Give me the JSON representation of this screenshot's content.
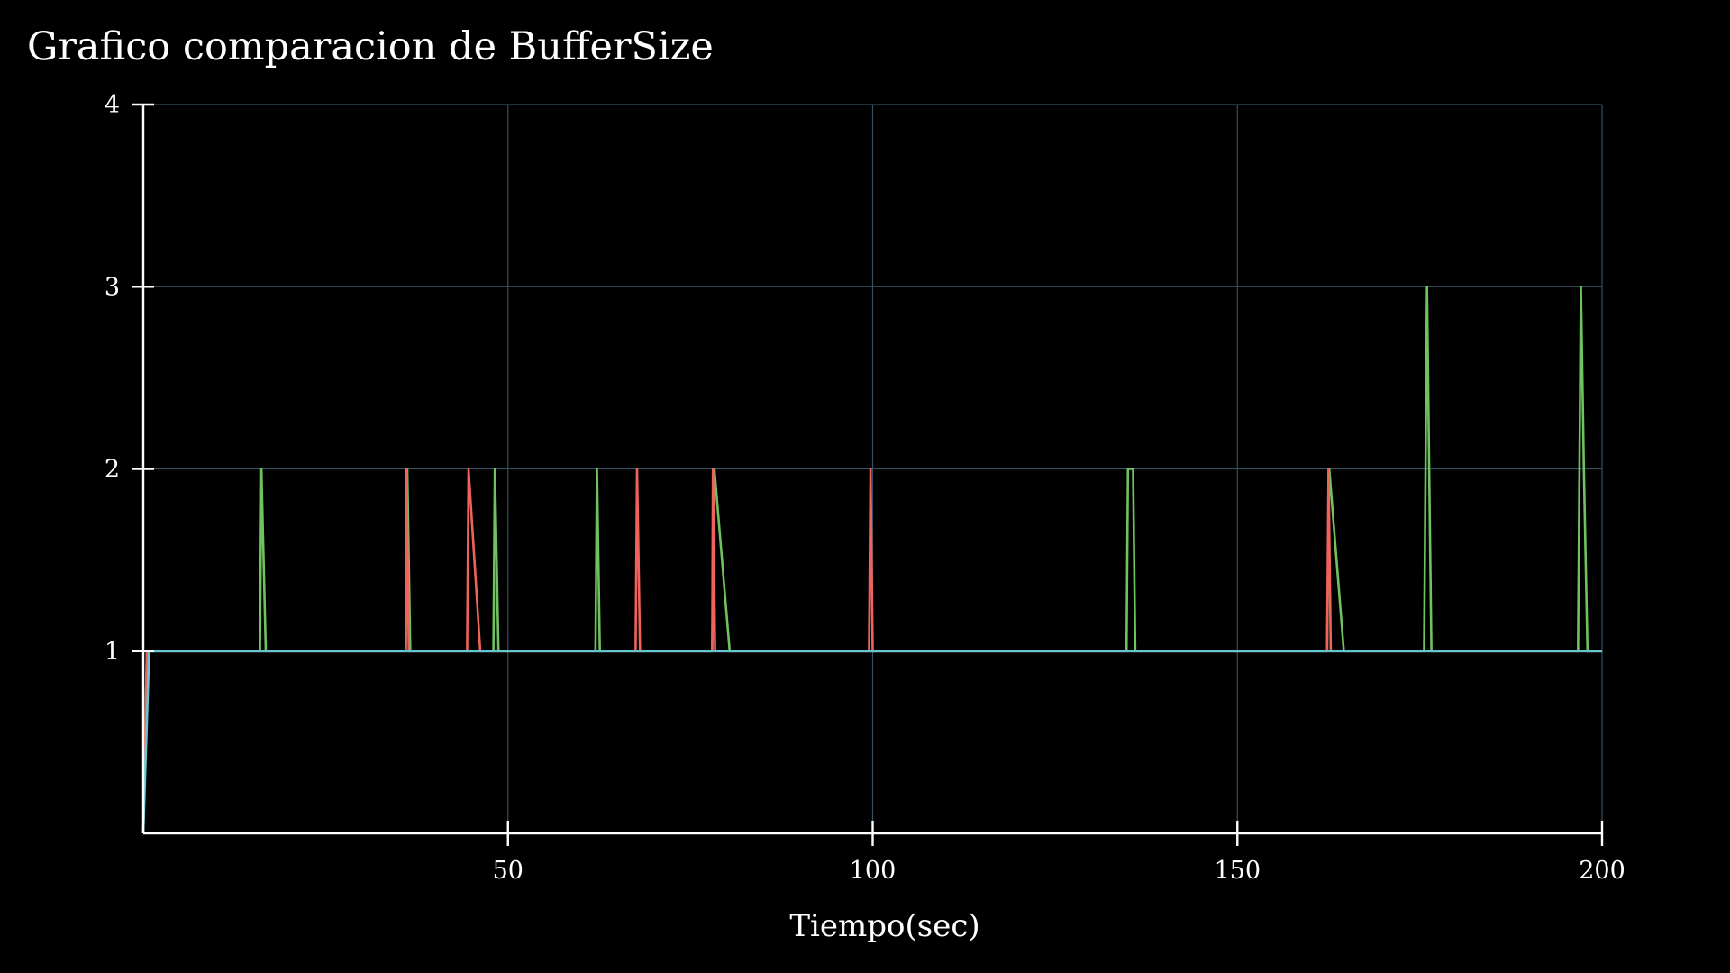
{
  "chart_data": {
    "type": "line",
    "title": "Grafico comparacion de BufferSize",
    "xlabel": "Tiempo(sec)",
    "ylabel": "",
    "xlim": [
      0,
      200
    ],
    "ylim": [
      0,
      4
    ],
    "x_ticks": [
      50,
      100,
      150,
      200
    ],
    "y_ticks": [
      1,
      2,
      3,
      4
    ],
    "grid": true,
    "colors": {
      "background": "#000000",
      "axis": "#ffffff",
      "grid": "#35505e"
    },
    "series": [
      {
        "color": "#6fc35f",
        "points": [
          [
            0,
            0
          ],
          [
            0.5,
            1
          ],
          [
            16,
            1
          ],
          [
            16.2,
            2
          ],
          [
            16.8,
            1
          ],
          [
            36,
            1
          ],
          [
            36.2,
            2
          ],
          [
            36.6,
            1
          ],
          [
            48,
            1
          ],
          [
            48.2,
            2
          ],
          [
            48.7,
            1
          ],
          [
            62,
            1
          ],
          [
            62.2,
            2
          ],
          [
            62.6,
            1
          ],
          [
            78,
            1
          ],
          [
            78.3,
            2
          ],
          [
            80.4,
            1
          ],
          [
            134.8,
            1
          ],
          [
            135,
            2
          ],
          [
            135.7,
            2
          ],
          [
            136,
            1
          ],
          [
            162.3,
            1
          ],
          [
            162.6,
            2
          ],
          [
            164.6,
            1
          ],
          [
            175.6,
            1
          ],
          [
            175.8,
            2
          ],
          [
            176,
            3
          ],
          [
            176.3,
            2
          ],
          [
            176.6,
            1
          ],
          [
            196.7,
            1
          ],
          [
            196.9,
            2
          ],
          [
            197.1,
            3
          ],
          [
            197.5,
            2
          ],
          [
            198,
            1
          ],
          [
            200,
            1
          ]
        ]
      },
      {
        "color": "#f0625b",
        "points": [
          [
            0,
            0
          ],
          [
            0.5,
            1
          ],
          [
            36,
            1
          ],
          [
            36.1,
            2
          ],
          [
            36.4,
            1
          ],
          [
            44.4,
            1
          ],
          [
            44.6,
            2
          ],
          [
            46.2,
            1
          ],
          [
            67.5,
            1
          ],
          [
            67.7,
            2
          ],
          [
            68.1,
            1
          ],
          [
            78,
            1
          ],
          [
            78.1,
            2
          ],
          [
            78.4,
            1
          ],
          [
            99.5,
            1
          ],
          [
            99.7,
            2
          ],
          [
            100,
            1
          ],
          [
            162.3,
            1
          ],
          [
            162.5,
            2
          ],
          [
            162.8,
            1
          ],
          [
            200,
            1
          ]
        ]
      },
      {
        "color": "#65c6d1",
        "points": [
          [
            0,
            0
          ],
          [
            0.8,
            1
          ],
          [
            200,
            1
          ]
        ]
      }
    ]
  }
}
